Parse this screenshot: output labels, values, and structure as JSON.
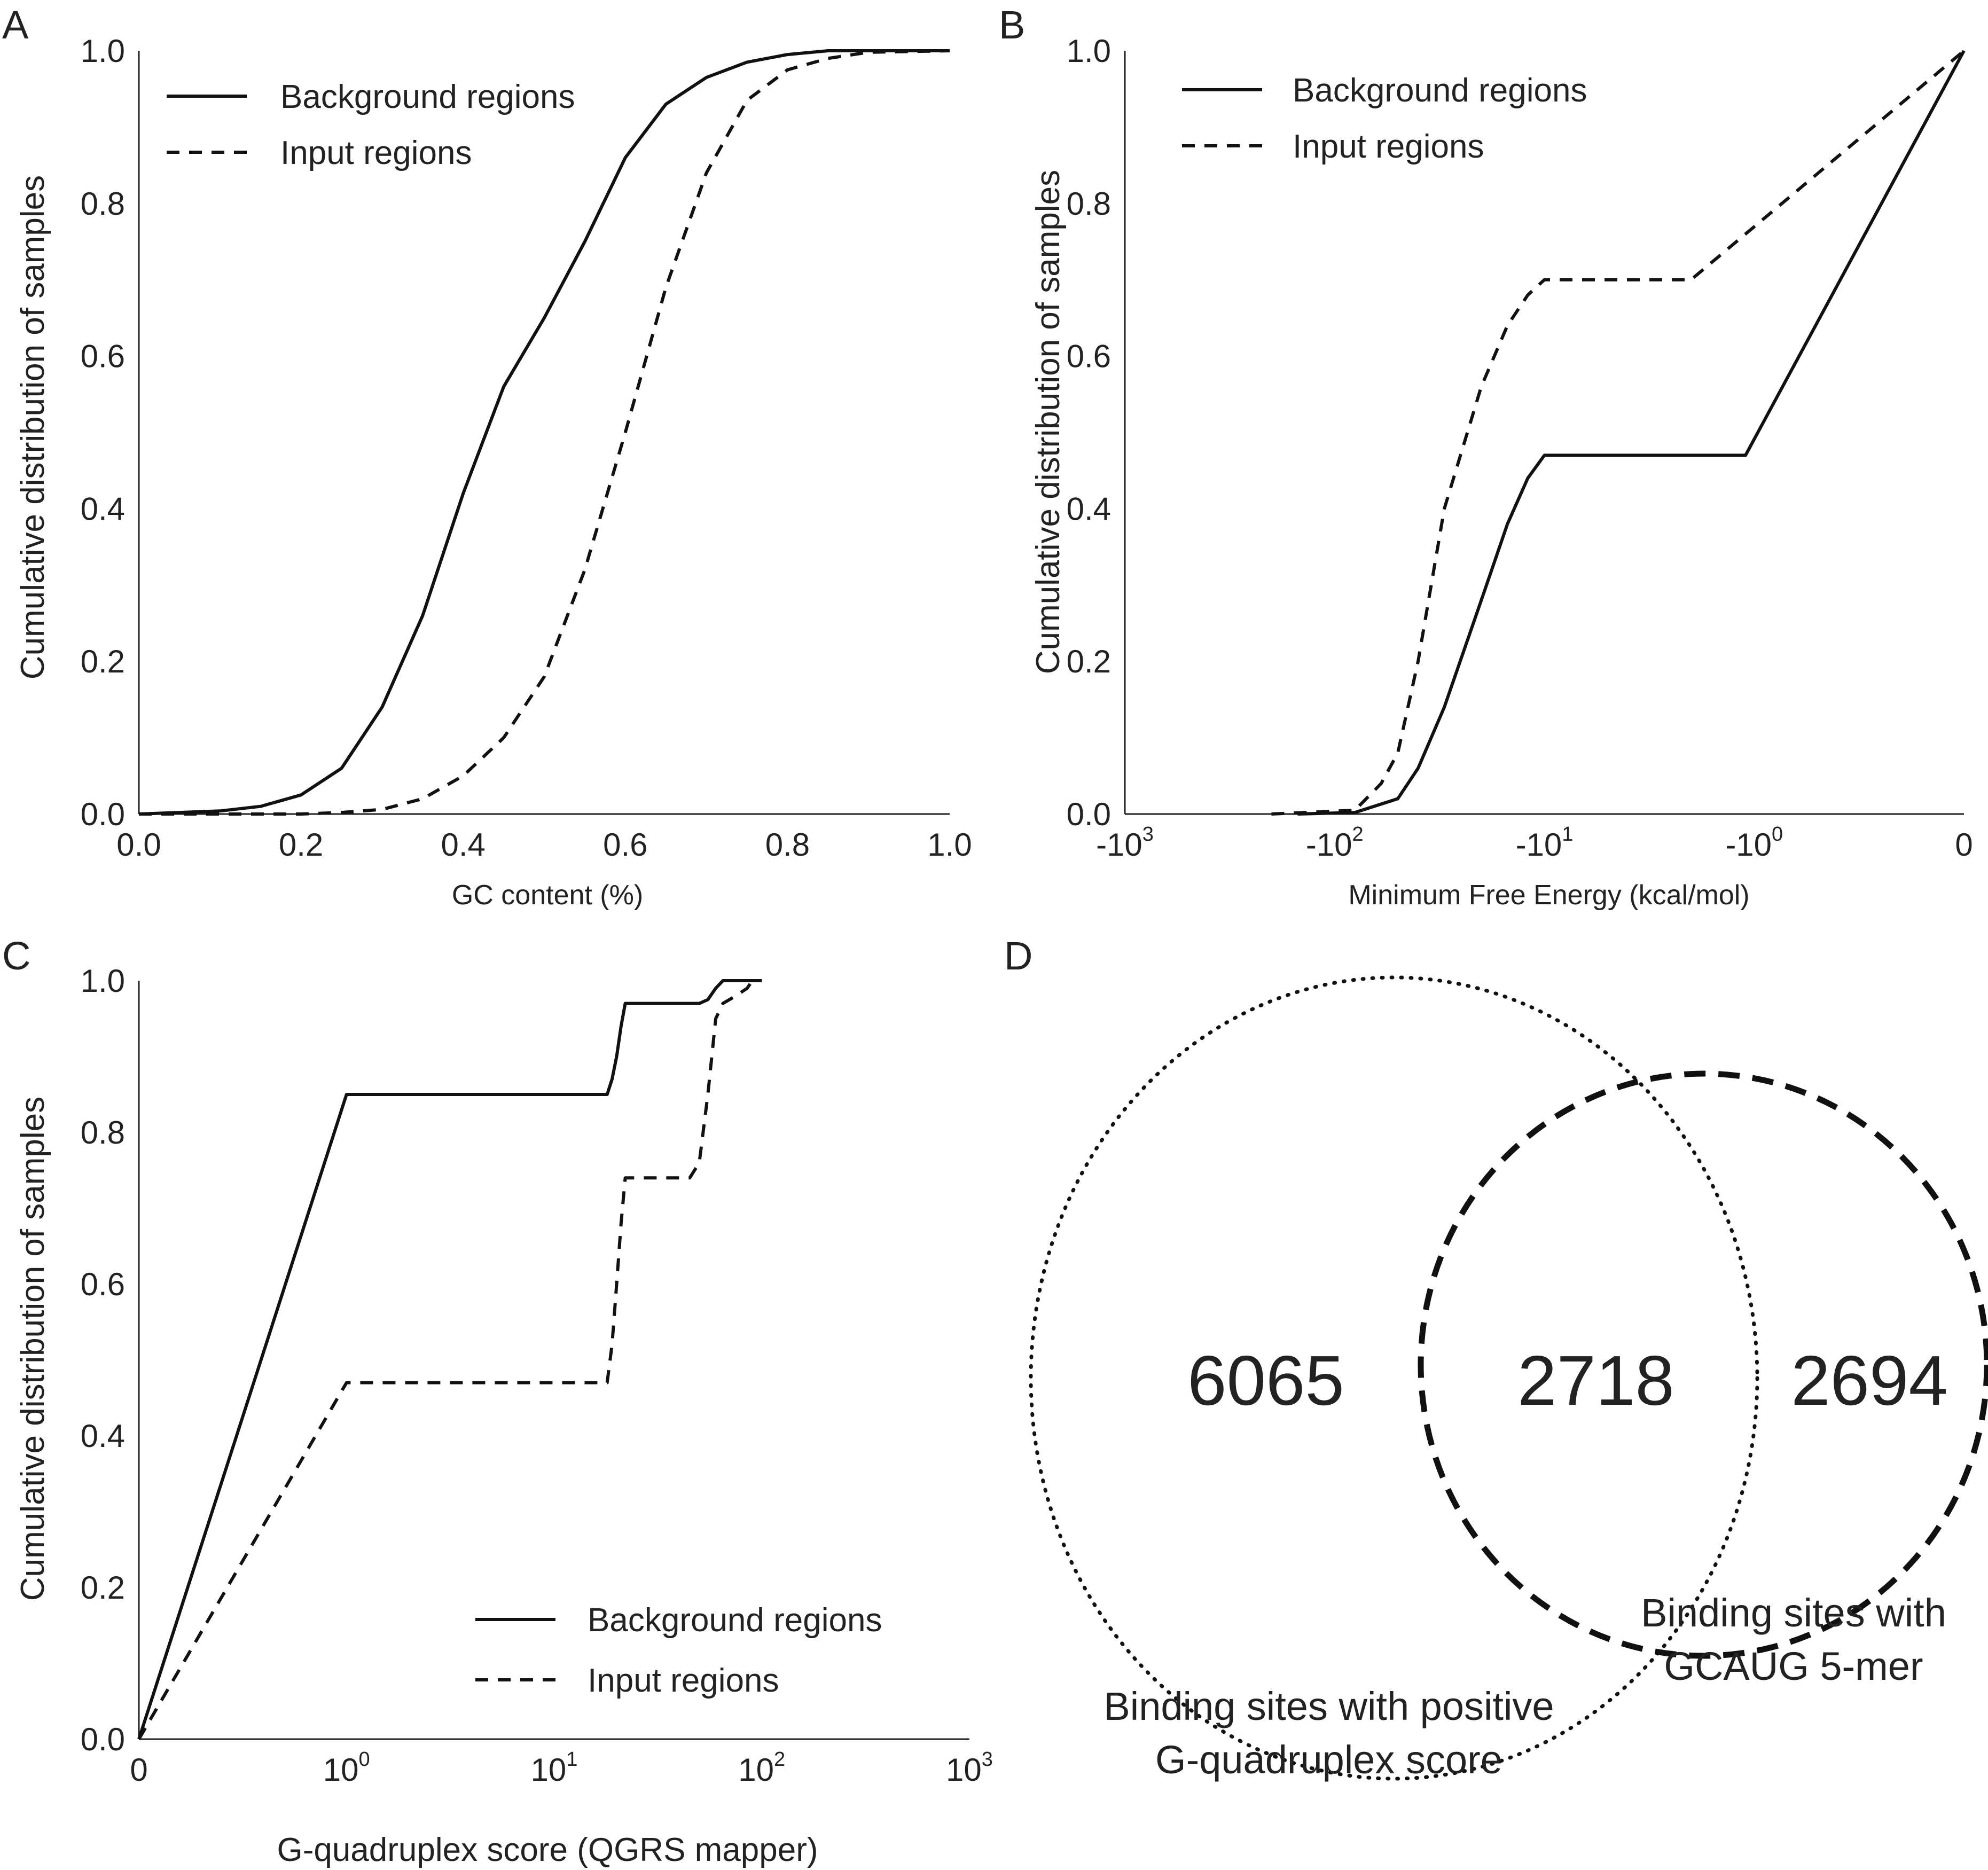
{
  "chart_data": [
    {
      "panel": "A",
      "type": "line",
      "xlabel": "GC content (%)",
      "ylabel": "Cumulative distribution of samples",
      "xlim": [
        0,
        1
      ],
      "ylim": [
        0,
        1
      ],
      "x_scale": "linear",
      "x_ticks": [
        "0.0",
        "0.2",
        "0.4",
        "0.6",
        "0.8",
        "1.0"
      ],
      "y_ticks": [
        "0.0",
        "0.2",
        "0.4",
        "0.6",
        "0.8",
        "1.0"
      ],
      "legend_position": "top-left",
      "series": [
        {
          "name": "Background regions",
          "style": "solid",
          "points": [
            [
              0,
              0
            ],
            [
              0.05,
              0.002
            ],
            [
              0.1,
              0.004
            ],
            [
              0.15,
              0.01
            ],
            [
              0.2,
              0.025
            ],
            [
              0.25,
              0.06
            ],
            [
              0.3,
              0.14
            ],
            [
              0.35,
              0.26
            ],
            [
              0.4,
              0.42
            ],
            [
              0.45,
              0.56
            ],
            [
              0.5,
              0.65
            ],
            [
              0.55,
              0.75
            ],
            [
              0.6,
              0.86
            ],
            [
              0.65,
              0.93
            ],
            [
              0.7,
              0.965
            ],
            [
              0.75,
              0.985
            ],
            [
              0.8,
              0.995
            ],
            [
              0.85,
              1.0
            ],
            [
              1.0,
              1.0
            ]
          ]
        },
        {
          "name": "Input regions",
          "style": "dashed",
          "points": [
            [
              0,
              0
            ],
            [
              0.2,
              0.0
            ],
            [
              0.25,
              0.002
            ],
            [
              0.3,
              0.006
            ],
            [
              0.35,
              0.02
            ],
            [
              0.4,
              0.05
            ],
            [
              0.45,
              0.1
            ],
            [
              0.5,
              0.18
            ],
            [
              0.55,
              0.32
            ],
            [
              0.6,
              0.5
            ],
            [
              0.65,
              0.69
            ],
            [
              0.7,
              0.84
            ],
            [
              0.75,
              0.935
            ],
            [
              0.8,
              0.975
            ],
            [
              0.85,
              0.99
            ],
            [
              0.9,
              0.998
            ],
            [
              1.0,
              1.0
            ]
          ]
        }
      ]
    },
    {
      "panel": "B",
      "type": "line",
      "xlabel": "Minimum Free Energy  (kcal/mol)",
      "ylabel": "Cumulative distribution of samples",
      "x_scale": "symlog",
      "xlim": [
        -1000,
        0
      ],
      "ylim": [
        0,
        1
      ],
      "x_ticks": [
        {
          "value": -1000,
          "base": "-10",
          "exp": "3"
        },
        {
          "value": -100,
          "base": "-10",
          "exp": "2"
        },
        {
          "value": -10,
          "base": "-10",
          "exp": "1"
        },
        {
          "value": -1,
          "base": "-10",
          "exp": "0"
        },
        {
          "value": 0,
          "base": "0",
          "exp": ""
        }
      ],
      "y_ticks": [
        "0.0",
        "0.2",
        "0.4",
        "0.6",
        "0.8",
        "1.0"
      ],
      "legend_position": "top-left",
      "series": [
        {
          "name": "Background regions",
          "style": "solid",
          "points": [
            [
              -150,
              0
            ],
            [
              -80,
              0.002
            ],
            [
              -50,
              0.02
            ],
            [
              -40,
              0.06
            ],
            [
              -30,
              0.14
            ],
            [
              -20,
              0.28
            ],
            [
              -15,
              0.38
            ],
            [
              -12,
              0.44
            ],
            [
              -10,
              0.47
            ],
            [
              -1.1,
              0.47
            ],
            [
              0,
              1.0
            ]
          ]
        },
        {
          "name": "Input regions",
          "style": "dashed",
          "points": [
            [
              -200,
              0
            ],
            [
              -80,
              0.005
            ],
            [
              -60,
              0.04
            ],
            [
              -50,
              0.08
            ],
            [
              -40,
              0.2
            ],
            [
              -30,
              0.4
            ],
            [
              -20,
              0.56
            ],
            [
              -15,
              0.64
            ],
            [
              -12,
              0.68
            ],
            [
              -10,
              0.7
            ],
            [
              -2,
              0.7
            ],
            [
              0,
              1.0
            ]
          ]
        }
      ]
    },
    {
      "panel": "C",
      "type": "line",
      "xlabel": "G-quadruplex score (QGRS mapper)",
      "ylabel": "Cumulative distribution of samples",
      "x_scale": "symlog",
      "xlim": [
        0,
        1000
      ],
      "ylim": [
        0,
        1
      ],
      "x_ticks": [
        {
          "value": 0,
          "base": "0",
          "exp": ""
        },
        {
          "value": 1,
          "base": "10",
          "exp": "0"
        },
        {
          "value": 10,
          "base": "10",
          "exp": "1"
        },
        {
          "value": 100,
          "base": "10",
          "exp": "2"
        },
        {
          "value": 1000,
          "base": "10",
          "exp": "3"
        }
      ],
      "y_ticks": [
        "0.0",
        "0.2",
        "0.4",
        "0.6",
        "0.8",
        "1.0"
      ],
      "legend_position": "bottom-right",
      "series": [
        {
          "name": "Background regions",
          "style": "solid",
          "points": [
            [
              0,
              0
            ],
            [
              1,
              0.85
            ],
            [
              18,
              0.85
            ],
            [
              19,
              0.87
            ],
            [
              20,
              0.9
            ],
            [
              21,
              0.94
            ],
            [
              22,
              0.97
            ],
            [
              50,
              0.97
            ],
            [
              55,
              0.975
            ],
            [
              60,
              0.99
            ],
            [
              65,
              1.0
            ],
            [
              100,
              1.0
            ]
          ]
        },
        {
          "name": "Input regions",
          "style": "dashed",
          "points": [
            [
              0,
              0
            ],
            [
              1,
              0.47
            ],
            [
              18,
              0.47
            ],
            [
              19,
              0.52
            ],
            [
              20,
              0.6
            ],
            [
              21,
              0.68
            ],
            [
              22,
              0.74
            ],
            [
              45,
              0.74
            ],
            [
              50,
              0.76
            ],
            [
              55,
              0.85
            ],
            [
              60,
              0.95
            ],
            [
              65,
              0.97
            ],
            [
              75,
              0.98
            ],
            [
              85,
              0.99
            ],
            [
              90,
              1.0
            ]
          ]
        }
      ]
    }
  ],
  "venn": {
    "panel": "D",
    "left_label_line1": "Binding sites with positive",
    "left_label_line2": "G-quadruplex score",
    "right_label_line1": "Binding sites with",
    "right_label_line2": "GCAUG 5-mer",
    "left_only": "6065",
    "overlap": "2718",
    "right_only": "2694",
    "left_style": "dotted",
    "right_style": "dashed"
  }
}
